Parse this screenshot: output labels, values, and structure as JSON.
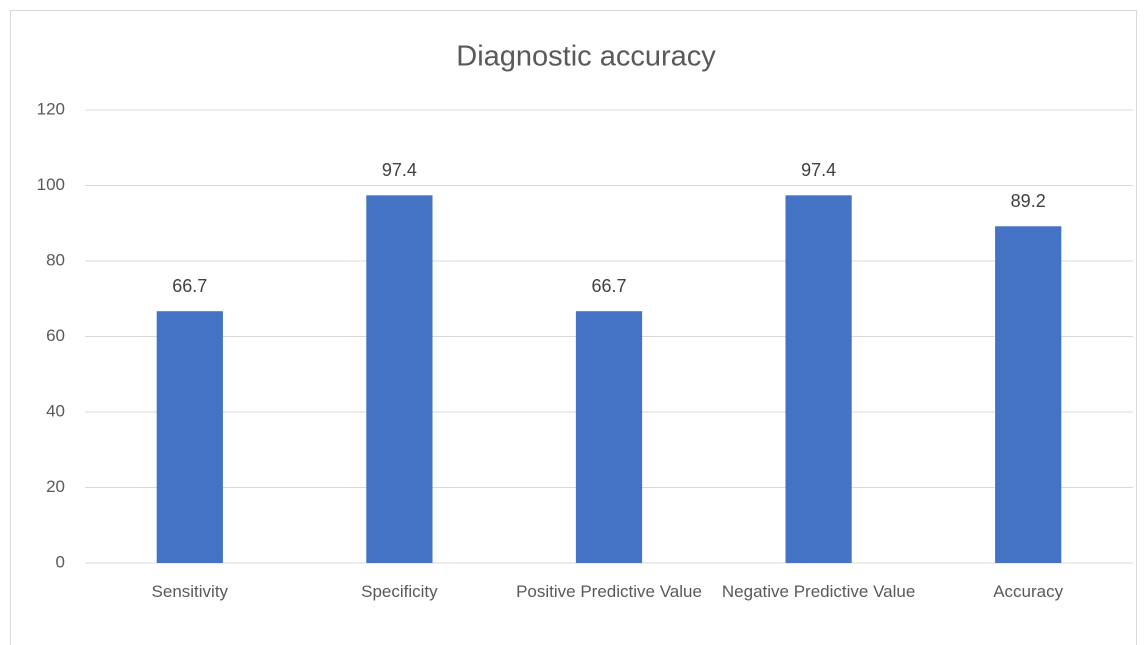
{
  "chart_data": {
    "type": "bar",
    "title": "Diagnostic accuracy",
    "categories": [
      "Sensitivity",
      "Specificity",
      "Positive Predictive Value",
      "Negative Predictive Value",
      "Accuracy"
    ],
    "values": [
      66.7,
      97.4,
      66.7,
      97.4,
      89.2
    ],
    "color": "#4472c4",
    "ylim": [
      0,
      120
    ],
    "yticks": [
      0,
      20,
      40,
      60,
      80,
      100,
      120
    ],
    "grid": true
  }
}
